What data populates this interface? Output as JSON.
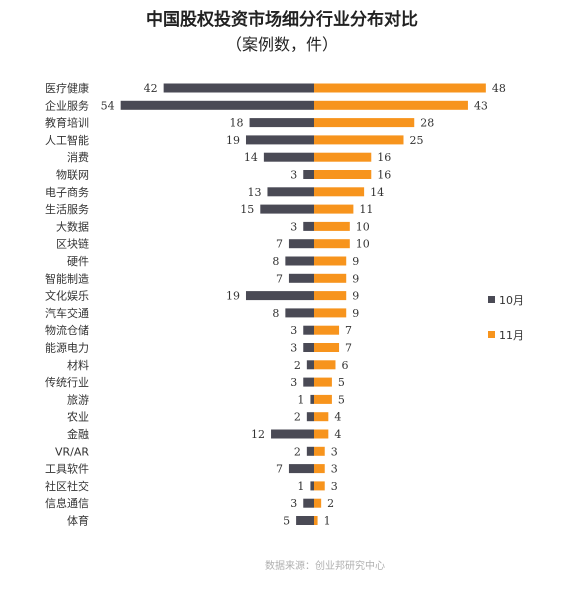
{
  "chart_data": {
    "type": "bar",
    "title": "中国股权投资市场细分行业分布对比",
    "subtitle": "（案例数，件）",
    "categories": [
      "医疗健康",
      "企业服务",
      "教育培训",
      "人工智能",
      "消费",
      "物联网",
      "电子商务",
      "生活服务",
      "大数据",
      "区块链",
      "硬件",
      "智能制造",
      "文化娱乐",
      "汽车交通",
      "物流仓储",
      "能源电力",
      "材料",
      "传统行业",
      "旅游",
      "农业",
      "金融",
      "VR/AR",
      "工具软件",
      "社区社交",
      "信息通信",
      "体育"
    ],
    "series": [
      {
        "name": "10月",
        "color": "#4a4a55",
        "values": [
          42,
          54,
          18,
          19,
          14,
          3,
          13,
          15,
          3,
          7,
          8,
          7,
          19,
          8,
          3,
          3,
          2,
          3,
          1,
          2,
          12,
          2,
          7,
          1,
          3,
          5
        ]
      },
      {
        "name": "11月",
        "color": "#f7941d",
        "values": [
          48,
          43,
          28,
          25,
          16,
          16,
          14,
          11,
          10,
          10,
          9,
          9,
          9,
          9,
          7,
          7,
          6,
          5,
          5,
          4,
          4,
          3,
          3,
          3,
          2,
          1
        ]
      }
    ],
    "legend_position": "right",
    "grid": false,
    "source": "数据来源：创业邦研究中心"
  }
}
